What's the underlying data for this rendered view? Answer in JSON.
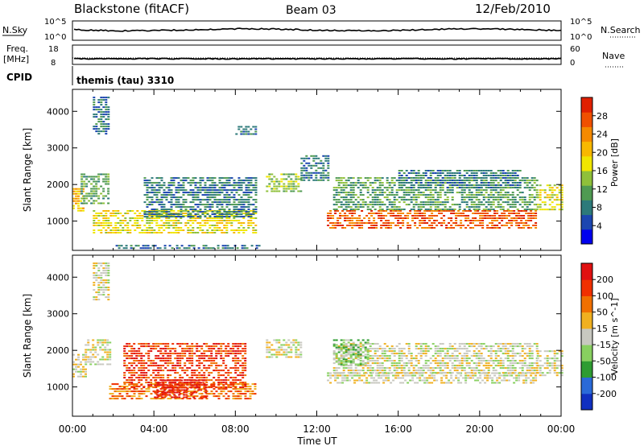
{
  "header": {
    "station": "Blackstone (fitACF)",
    "beam": "Beam 03",
    "date": "12/Feb/2010"
  },
  "summary_panels": {
    "nsky_label": "N.Sky",
    "nsky_ticks": [
      "10^5",
      "10^0"
    ],
    "nsearch_label": "N.Search",
    "nsearch_ticks": [
      "10^5",
      "10^0"
    ],
    "freq_label": "Freq.",
    "freq_unit": "[MHz]",
    "freq_ticks": [
      "18",
      "8"
    ],
    "nave_label": "Nave",
    "nave_ticks": [
      "60",
      "0"
    ],
    "cpid_label": "CPID",
    "cpid_value": "themis (tau) 3310"
  },
  "chart_data": [
    {
      "type": "heatmap",
      "name": "power-panel",
      "ylabel": "Slant Range [km]",
      "xlabel": "",
      "yticks": [
        "4000",
        "3000",
        "2000",
        "1000"
      ],
      "ylim": [
        200,
        4600
      ],
      "xlim_hours": [
        0,
        24
      ],
      "colorbar_label": "Power [dB]",
      "colorbar_ticks": [
        "28",
        "24",
        "20",
        "16",
        "12",
        "8",
        "4"
      ],
      "colorbar_colors": [
        "#0000ee",
        "#1c46b0",
        "#2d7a7a",
        "#4f9a52",
        "#8fc03a",
        "#f0e600",
        "#f8b800",
        "#f58a00",
        "#f05000",
        "#e02000"
      ],
      "echo_regions": [
        {
          "t0": 0.0,
          "t1": 0.5,
          "r0": 1300,
          "r1": 1900,
          "level": 6
        },
        {
          "t0": 0.4,
          "t1": 1.8,
          "r0": 1500,
          "r1": 2300,
          "level": 3
        },
        {
          "t0": 1.0,
          "t1": 1.8,
          "r0": 3400,
          "r1": 4400,
          "level": 2
        },
        {
          "t0": 1.0,
          "t1": 9.0,
          "r0": 700,
          "r1": 1300,
          "level": 5
        },
        {
          "t0": 3.5,
          "t1": 9.0,
          "r0": 1100,
          "r1": 2200,
          "level": 2
        },
        {
          "t0": 2.0,
          "t1": 9.2,
          "r0": 250,
          "r1": 350,
          "level": 2
        },
        {
          "t0": 8.0,
          "t1": 9.0,
          "r0": 3400,
          "r1": 3600,
          "level": 2
        },
        {
          "t0": 9.5,
          "t1": 11.2,
          "r0": 1800,
          "r1": 2300,
          "level": 4
        },
        {
          "t0": 11.2,
          "t1": 12.6,
          "r0": 2100,
          "r1": 2800,
          "level": 2
        },
        {
          "t0": 12.5,
          "t1": 22.8,
          "r0": 800,
          "r1": 1300,
          "level": 8
        },
        {
          "t0": 12.8,
          "t1": 22.8,
          "r0": 1300,
          "r1": 2200,
          "level": 3
        },
        {
          "t0": 22.8,
          "t1": 24.0,
          "r0": 1300,
          "r1": 2000,
          "level": 5
        },
        {
          "t0": 16.0,
          "t1": 22.0,
          "r0": 1900,
          "r1": 2400,
          "level": 2
        }
      ]
    },
    {
      "type": "heatmap",
      "name": "velocity-panel",
      "ylabel": "Slant Range [km]",
      "xlabel": "Time UT",
      "xticks": [
        "00:00",
        "04:00",
        "08:00",
        "12:00",
        "16:00",
        "20:00",
        "00:00"
      ],
      "yticks": [
        "4000",
        "3000",
        "2000",
        "1000"
      ],
      "ylim": [
        200,
        4600
      ],
      "xlim_hours": [
        0,
        24
      ],
      "colorbar_label": "Velocity [m s^-1]",
      "colorbar_ticks": [
        "200",
        "100",
        "50",
        "15",
        "-15",
        "-50",
        "-100",
        "-200"
      ],
      "colorbar_colors": [
        "#1030c0",
        "#2a6ad8",
        "#2e9c32",
        "#88d060",
        "#c8c8c0",
        "#f0b020",
        "#f07000",
        "#f03000",
        "#e01010"
      ],
      "echo_regions": [
        {
          "t0": 0.0,
          "t1": 0.6,
          "r0": 1300,
          "r1": 1900,
          "level": 4
        },
        {
          "t0": 0.6,
          "t1": 1.8,
          "r0": 1600,
          "r1": 2300,
          "level": 4
        },
        {
          "t0": 1.0,
          "t1": 1.8,
          "r0": 3400,
          "r1": 4400,
          "level": 4
        },
        {
          "t0": 1.8,
          "t1": 9.0,
          "r0": 700,
          "r1": 1100,
          "level": 6
        },
        {
          "t0": 2.5,
          "t1": 8.5,
          "r0": 1000,
          "r1": 2200,
          "level": 7
        },
        {
          "t0": 4.0,
          "t1": 6.5,
          "r0": 700,
          "r1": 1200,
          "level": 8
        },
        {
          "t0": 9.5,
          "t1": 11.2,
          "r0": 1800,
          "r1": 2300,
          "level": 4
        },
        {
          "t0": 12.5,
          "t1": 22.8,
          "r0": 1100,
          "r1": 1400,
          "level": 4
        },
        {
          "t0": 12.8,
          "t1": 22.8,
          "r0": 1400,
          "r1": 2200,
          "level": 4
        },
        {
          "t0": 12.8,
          "t1": 14.5,
          "r0": 1600,
          "r1": 2300,
          "level": 3
        },
        {
          "t0": 22.8,
          "t1": 24.0,
          "r0": 1300,
          "r1": 2000,
          "level": 4
        }
      ]
    }
  ]
}
